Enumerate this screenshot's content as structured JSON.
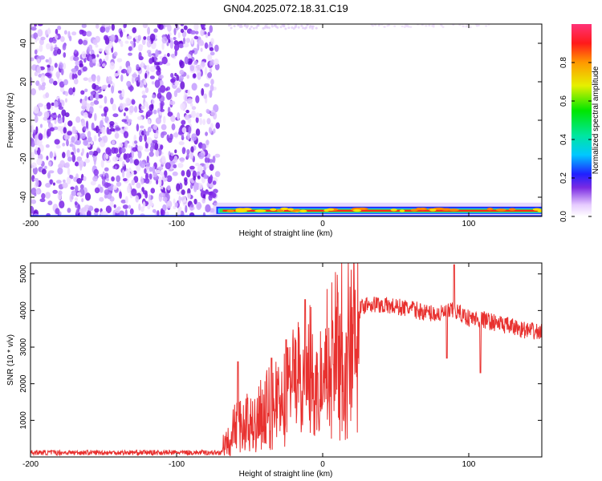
{
  "title": "GN04.2025.072.18.31.C19",
  "chart_data": [
    {
      "type": "heatmap",
      "xlabel": "Height of straight line (km)",
      "ylabel": "Frequency (Hz)",
      "xlim": [
        -200,
        150
      ],
      "ylim": [
        -50,
        50
      ],
      "x_ticks": [
        "-200",
        "-100",
        "0",
        "100"
      ],
      "y_ticks": [
        "40",
        "20",
        "0",
        "-20",
        "-40"
      ],
      "colorbar": {
        "label": "Normalized spectral amplitude",
        "range": [
          0,
          1
        ],
        "ticks": [
          "0.0",
          "0.2",
          "0.4",
          "0.6",
          "0.8"
        ]
      },
      "noise_region_x": [
        -200,
        -75
      ],
      "signal_band": {
        "x": [
          -75,
          150
        ],
        "frequency_hz": -47
      }
    },
    {
      "type": "line",
      "xlabel": "Height of straight line (km)",
      "ylabel": "SNR (10 * v/v)",
      "xlim": [
        -200,
        150
      ],
      "ylim": [
        0,
        5300
      ],
      "x_ticks": [
        "-200",
        "-100",
        "0",
        "100"
      ],
      "y_ticks": [
        "1000",
        "2000",
        "3000",
        "4000",
        "5000"
      ],
      "color": "#e8312f",
      "x": [
        -200,
        -150,
        -100,
        -70,
        -65,
        -60,
        -50,
        -40,
        -30,
        -20,
        -10,
        0,
        10,
        20,
        30,
        40,
        50,
        60,
        70,
        80,
        90,
        100,
        110,
        120,
        130,
        140,
        150
      ],
      "values": [
        120,
        120,
        120,
        120,
        400,
        800,
        1000,
        1300,
        1700,
        2100,
        2500,
        2800,
        3300,
        3800,
        4200,
        4150,
        4100,
        4050,
        3950,
        3900,
        4000,
        3800,
        3750,
        3650,
        3550,
        3450,
        3400
      ],
      "spikes": [
        {
          "x": -58,
          "y": 2600
        },
        {
          "x": -35,
          "y": 2700
        },
        {
          "x": -25,
          "y": 3200
        },
        {
          "x": -12,
          "y": 4300
        },
        {
          "x": 90,
          "y": 5250
        },
        {
          "x": 85,
          "y": 2700
        },
        {
          "x": 108,
          "y": 2300
        }
      ]
    }
  ]
}
